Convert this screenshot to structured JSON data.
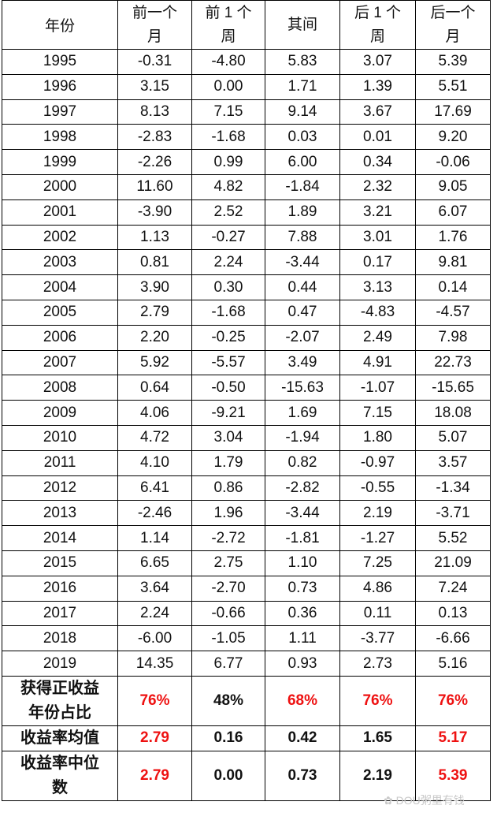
{
  "header": [
    "年份",
    "前一个月",
    "前 1 个周",
    "其间",
    "后 1 个周",
    "后一个月"
  ],
  "rows": [
    [
      "1995",
      "-0.31",
      "-4.80",
      "5.83",
      "3.07",
      "5.39"
    ],
    [
      "1996",
      "3.15",
      "0.00",
      "1.71",
      "1.39",
      "5.51"
    ],
    [
      "1997",
      "8.13",
      "7.15",
      "9.14",
      "3.67",
      "17.69"
    ],
    [
      "1998",
      "-2.83",
      "-1.68",
      "0.03",
      "0.01",
      "9.20"
    ],
    [
      "1999",
      "-2.26",
      "0.99",
      "6.00",
      "0.34",
      "-0.06"
    ],
    [
      "2000",
      "11.60",
      "4.82",
      "-1.84",
      "2.32",
      "9.05"
    ],
    [
      "2001",
      "-3.90",
      "2.52",
      "1.89",
      "3.21",
      "6.07"
    ],
    [
      "2002",
      "1.13",
      "-0.27",
      "7.88",
      "3.01",
      "1.76"
    ],
    [
      "2003",
      "0.81",
      "2.24",
      "-3.44",
      "0.17",
      "9.81"
    ],
    [
      "2004",
      "3.90",
      "0.30",
      "0.44",
      "3.13",
      "0.14"
    ],
    [
      "2005",
      "2.79",
      "-1.68",
      "0.47",
      "-4.83",
      "-4.57"
    ],
    [
      "2006",
      "2.20",
      "-0.25",
      "-2.07",
      "2.49",
      "7.98"
    ],
    [
      "2007",
      "5.92",
      "-5.57",
      "3.49",
      "4.91",
      "22.73"
    ],
    [
      "2008",
      "0.64",
      "-0.50",
      "-15.63",
      "-1.07",
      "-15.65"
    ],
    [
      "2009",
      "4.06",
      "-9.21",
      "1.69",
      "7.15",
      "18.08"
    ],
    [
      "2010",
      "4.72",
      "3.04",
      "-1.94",
      "1.80",
      "5.07"
    ],
    [
      "2011",
      "4.10",
      "1.79",
      "0.82",
      "-0.97",
      "3.57"
    ],
    [
      "2012",
      "6.41",
      "0.86",
      "-2.82",
      "-0.55",
      "-1.34"
    ],
    [
      "2013",
      "-2.46",
      "1.96",
      "-3.44",
      "2.19",
      "-3.71"
    ],
    [
      "2014",
      "1.14",
      "-2.72",
      "-1.81",
      "-1.27",
      "5.52"
    ],
    [
      "2015",
      "6.65",
      "2.75",
      "1.10",
      "7.25",
      "21.09"
    ],
    [
      "2016",
      "3.64",
      "-2.70",
      "0.73",
      "4.86",
      "7.24"
    ],
    [
      "2017",
      "2.24",
      "-0.66",
      "0.36",
      "0.11",
      "0.13"
    ],
    [
      "2018",
      "-6.00",
      "-1.05",
      "1.11",
      "-3.77",
      "-6.66"
    ],
    [
      "2019",
      "14.35",
      "6.77",
      "0.93",
      "2.73",
      "5.16"
    ]
  ],
  "summary": [
    [
      "获得正收益年份占比",
      "76%",
      "48%",
      "68%",
      "76%",
      "76%"
    ],
    [
      "收益率均值",
      "2.79",
      "0.16",
      "0.42",
      "1.65",
      "5.17"
    ],
    [
      "收益率中位数",
      "2.79",
      "0.00",
      "0.73",
      "2.19",
      "5.39"
    ]
  ],
  "watermark": "DOU粥里有钱"
}
